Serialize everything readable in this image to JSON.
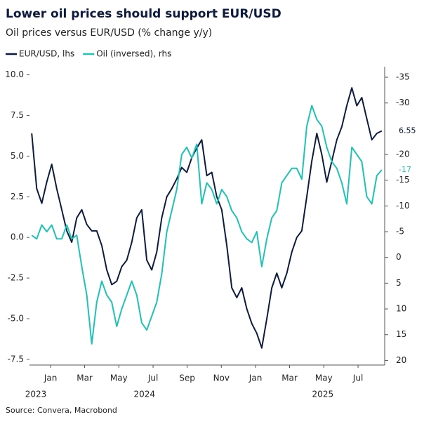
{
  "chart_data": {
    "type": "line",
    "title": "Lower oil prices should support EUR/USD",
    "subtitle": "Oil prices versus EUR/USD (% change y/y)",
    "source": "Source: Convera, Macrobond",
    "x": [
      2023.95,
      2023.9744,
      2023.9988,
      2024.0232,
      2024.0476,
      2024.072,
      2024.0964,
      2024.1208,
      2024.1452,
      2024.1696,
      2024.194,
      2024.2184,
      2024.2428,
      2024.2672,
      2024.2916,
      2024.316,
      2024.3404,
      2024.3648,
      2024.3892,
      2024.4136,
      2024.438,
      2024.4624,
      2024.4868,
      2024.5112,
      2024.5356,
      2024.56,
      2024.5844,
      2024.6088,
      2024.6332,
      2024.6576,
      2024.682,
      2024.7064,
      2024.7308,
      2024.7552,
      2024.7796,
      2024.804,
      2024.8284,
      2024.8528,
      2024.8772,
      2024.9016,
      2024.926,
      2024.9504,
      2024.9748,
      2024.9992,
      2025.0236,
      2025.048,
      2025.0724,
      2025.0968,
      2025.1212,
      2025.1456,
      2025.17,
      2025.1944,
      2025.2188,
      2025.2432,
      2025.2676,
      2025.292,
      2025.3164,
      2025.3408,
      2025.3652,
      2025.3896,
      2025.414,
      2025.4384,
      2025.4628,
      2025.4872,
      2025.5116,
      2025.536,
      2025.5604,
      2025.5848,
      2025.6092,
      2025.6336,
      2025.658
    ],
    "series": [
      {
        "name": "EUR/USD, lhs",
        "color": "#0d1b3e",
        "axis": "y",
        "values": [
          6.4,
          3.0,
          2.1,
          3.4,
          4.5,
          3.0,
          1.7,
          0.4,
          -0.3,
          1.2,
          1.7,
          0.8,
          0.4,
          0.4,
          -0.5,
          -2.0,
          -2.9,
          -2.7,
          -1.8,
          -1.4,
          -0.3,
          1.2,
          1.7,
          -1.4,
          -2.0,
          -0.9,
          1.2,
          2.5,
          3.0,
          3.6,
          4.3,
          4.0,
          4.9,
          5.5,
          6.0,
          3.8,
          4.0,
          2.5,
          1.7,
          -0.5,
          -3.1,
          -3.7,
          -3.1,
          -4.4,
          -5.3,
          -5.9,
          -6.8,
          -5.0,
          -3.1,
          -2.2,
          -3.1,
          -2.2,
          -0.9,
          0.0,
          0.4,
          2.5,
          4.7,
          6.4,
          5.1,
          3.4,
          4.7,
          6.0,
          6.8,
          8.1,
          9.2,
          8.1,
          8.6,
          7.3,
          6.0,
          6.4,
          6.55
        ]
      },
      {
        "name": "Oil (inversed), rhs",
        "color": "#1fc2b5",
        "axis": "y2",
        "values": [
          -4.3,
          -3.6,
          -6.3,
          -5.0,
          -6.3,
          -3.6,
          -3.6,
          -6.3,
          -3.6,
          -4.3,
          1.8,
          7.3,
          16.8,
          8.7,
          4.6,
          7.3,
          8.7,
          13.4,
          10.0,
          7.3,
          4.6,
          7.3,
          12.7,
          14.1,
          11.4,
          8.7,
          3.2,
          -5.0,
          -9.1,
          -13.2,
          -20.0,
          -21.4,
          -19.3,
          -22.0,
          -10.4,
          -14.5,
          -13.2,
          -10.4,
          -13.2,
          -11.8,
          -9.1,
          -7.7,
          -5.0,
          -3.6,
          -2.9,
          -5.0,
          1.8,
          -3.6,
          -7.7,
          -9.1,
          -14.5,
          -15.9,
          -17.3,
          -17.3,
          -15.2,
          -25.5,
          -29.5,
          -26.8,
          -25.5,
          -21.4,
          -18.6,
          -17.3,
          -14.5,
          -10.4,
          -21.4,
          -20.0,
          -18.6,
          -11.8,
          -10.4,
          -15.9,
          -17
        ]
      }
    ],
    "xlim": [
      2023.939,
      2025.672
    ],
    "xticks": [
      {
        "value": 2024.042,
        "label": "Jan"
      },
      {
        "value": 2024.208,
        "label": "Mar"
      },
      {
        "value": 2024.375,
        "label": "May"
      },
      {
        "value": 2024.542,
        "label": "Jul"
      },
      {
        "value": 2024.708,
        "label": "Sep"
      },
      {
        "value": 2024.875,
        "label": "Nov"
      },
      {
        "value": 2025.042,
        "label": "Jan"
      },
      {
        "value": 2025.208,
        "label": "Mar"
      },
      {
        "value": 2025.375,
        "label": "May"
      },
      {
        "value": 2025.542,
        "label": "Jul"
      }
    ],
    "year_labels": [
      {
        "value": 2023.97,
        "label": "2023"
      },
      {
        "value": 2024.5,
        "label": "2024"
      },
      {
        "value": 2025.37,
        "label": "2025"
      }
    ],
    "ylim": [
      -7.85,
      10.5
    ],
    "yticks": [
      {
        "value": 10,
        "label": "10.0"
      },
      7.5,
      {
        "value": 5,
        "label": "5.0"
      },
      2.5,
      {
        "value": 0,
        "label": "0.0"
      },
      -2.5,
      {
        "value": -5,
        "label": "-5.0"
      },
      -7.5
    ],
    "y2lim": [
      20.9,
      -37.05
    ],
    "y2ticks": [
      -35,
      -30,
      -20,
      -15,
      -10,
      -5,
      0,
      5,
      10,
      15,
      20
    ],
    "grid": false
  }
}
